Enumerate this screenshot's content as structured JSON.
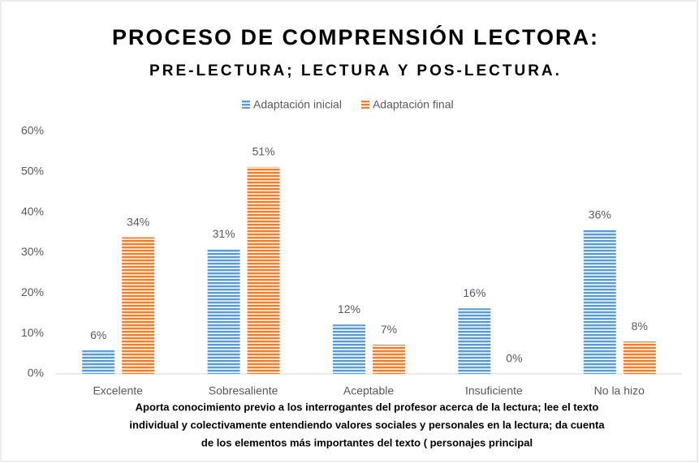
{
  "chart_data": {
    "type": "bar",
    "title": "PROCESO DE COMPRENSIÓN LECTORA:",
    "subtitle": "PRE-LECTURA;  LECTURA Y POS-LECTURA.",
    "xlabel": [
      "Aporta conocimiento previo a los interrogantes del profesor acerca de la lectura; lee el texto",
      "individual y colectivamente entendiendo valores sociales y personales en la lectura; da cuenta",
      "de los elementos más importantes del texto ( personajes principal"
    ],
    "categories": [
      "Excelente",
      "Sobresaliente",
      "Aceptable",
      "Insuficiente",
      "No la hizo"
    ],
    "series": [
      {
        "name": "Adaptación inicial",
        "color": "#5b9bd5",
        "values": [
          5.8,
          30.8,
          12.2,
          16.2,
          35.6
        ],
        "value_labels": [
          "6%",
          "31%",
          "12%",
          "16%",
          "36%"
        ]
      },
      {
        "name": "Adaptación final",
        "color": "#ed7d31",
        "values": [
          33.8,
          51.2,
          7.2,
          0,
          8.0
        ],
        "value_labels": [
          "34%",
          "51%",
          "7%",
          "0%",
          "8%"
        ]
      }
    ],
    "ylim": [
      0,
      60
    ],
    "yticks": [
      {
        "value": 0,
        "label": "0%"
      },
      {
        "value": 10,
        "label": "10%"
      },
      {
        "value": 20,
        "label": "20%"
      },
      {
        "value": 30,
        "label": "30%"
      },
      {
        "value": 40,
        "label": "40%"
      },
      {
        "value": 50,
        "label": "50%"
      },
      {
        "value": 60,
        "label": "60%"
      }
    ],
    "legend": "top"
  }
}
